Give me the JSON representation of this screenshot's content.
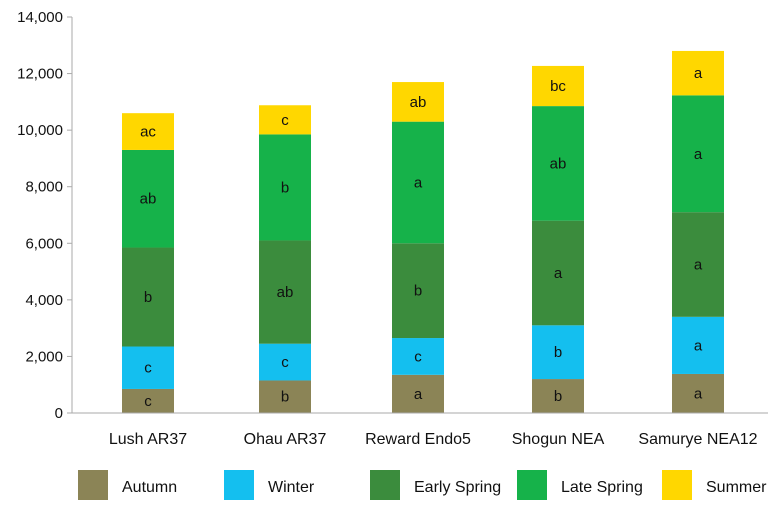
{
  "chart_data": {
    "type": "bar",
    "stacked": true,
    "categories": [
      "Lush AR37",
      "Ohau AR37",
      "Reward Endo5",
      "Shogun NEA",
      "Samurye NEA12"
    ],
    "ylim": [
      0,
      14000
    ],
    "yticks": [
      0,
      2000,
      4000,
      6000,
      8000,
      10000,
      12000,
      14000
    ],
    "ytick_labels": [
      "0",
      "2,000",
      "4,000",
      "6,000",
      "8,000",
      "10,000",
      "12,000",
      "14,000"
    ],
    "grid": false,
    "legend_position": "bottom",
    "series": [
      {
        "name": "Autumn",
        "color": "#8b8456",
        "values": [
          850,
          1150,
          1350,
          1200,
          1380
        ],
        "labels": [
          "c",
          "b",
          "a",
          "b",
          "a"
        ]
      },
      {
        "name": "Winter",
        "color": "#14bfef",
        "values": [
          1500,
          1300,
          1300,
          1900,
          2020
        ],
        "labels": [
          "c",
          "c",
          "c",
          "b",
          "a"
        ]
      },
      {
        "name": "Early Spring",
        "color": "#3b8c3d",
        "values": [
          3500,
          3650,
          3350,
          3700,
          3700
        ],
        "labels": [
          "b",
          "ab",
          "b",
          "a",
          "a"
        ]
      },
      {
        "name": "Late Spring",
        "color": "#16b24a",
        "values": [
          3450,
          3750,
          4300,
          4050,
          4130
        ],
        "labels": [
          "ab",
          "b",
          "a",
          "ab",
          "a"
        ]
      },
      {
        "name": "Summer",
        "color": "#ffd700",
        "values": [
          1300,
          1030,
          1400,
          1420,
          1570
        ],
        "labels": [
          "ac",
          "c",
          "ab",
          "bc",
          "a"
        ]
      }
    ]
  }
}
